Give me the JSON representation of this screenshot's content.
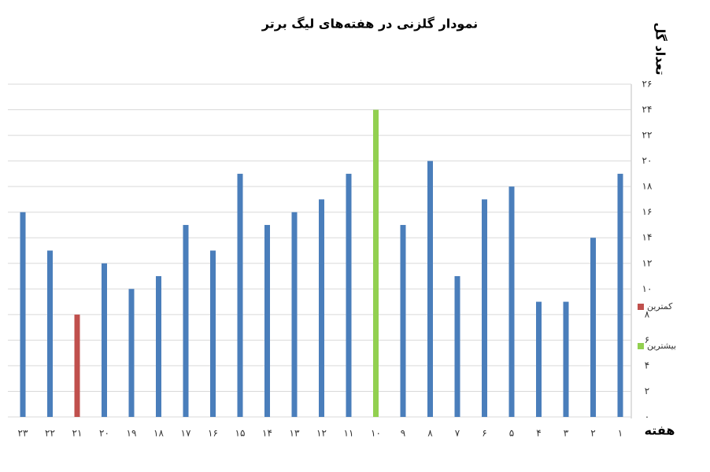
{
  "chart_data": {
    "type": "bar",
    "title": "نمودار گلزنی در هفته‌های لیگ برتر",
    "y_label": "تعداد گل",
    "x_label": "هفته",
    "categories": [
      "۱",
      "۲",
      "۳",
      "۴",
      "۵",
      "۶",
      "۷",
      "۸",
      "۹",
      "۱۰",
      "۱۱",
      "۱۲",
      "۱۳",
      "۱۴",
      "۱۵",
      "۱۶",
      "۱۷",
      "۱۸",
      "۱۹",
      "۲۰",
      "۲۱",
      "۲۲",
      "۲۳"
    ],
    "values": [
      19,
      14,
      9,
      9,
      18,
      17,
      11,
      20,
      15,
      24,
      19,
      17,
      16,
      15,
      19,
      13,
      15,
      11,
      10,
      12,
      8,
      13,
      16
    ],
    "colors": [
      "#4a7ebb",
      "#4a7ebb",
      "#4a7ebb",
      "#4a7ebb",
      "#4a7ebb",
      "#4a7ebb",
      "#4a7ebb",
      "#4a7ebb",
      "#4a7ebb",
      "#92d050",
      "#4a7ebb",
      "#4a7ebb",
      "#4a7ebb",
      "#4a7ebb",
      "#4a7ebb",
      "#4a7ebb",
      "#4a7ebb",
      "#4a7ebb",
      "#4a7ebb",
      "#4a7ebb",
      "#c0504d",
      "#4a7ebb",
      "#4a7ebb"
    ],
    "legend": [
      {
        "label": "کمترین",
        "color": "#c0504d"
      },
      {
        "label": "بیشترین",
        "color": "#92d050"
      }
    ],
    "ylim": [
      0,
      26
    ],
    "yticks": [
      {
        "value": 0,
        "label": "۰"
      },
      {
        "value": 2,
        "label": "۲"
      },
      {
        "value": 4,
        "label": "۴"
      },
      {
        "value": 6,
        "label": "۶"
      },
      {
        "value": 8,
        "label": "۸"
      },
      {
        "value": 10,
        "label": "۱۰"
      },
      {
        "value": 12,
        "label": "۱۲"
      },
      {
        "value": 14,
        "label": "۱۴"
      },
      {
        "value": 16,
        "label": "۱۶"
      },
      {
        "value": 18,
        "label": "۱۸"
      },
      {
        "value": 20,
        "label": "۲۰"
      },
      {
        "value": 22,
        "label": "۲۲"
      },
      {
        "value": 24,
        "label": "۲۴"
      },
      {
        "value": 26,
        "label": "۲۶"
      }
    ],
    "grid": true
  }
}
